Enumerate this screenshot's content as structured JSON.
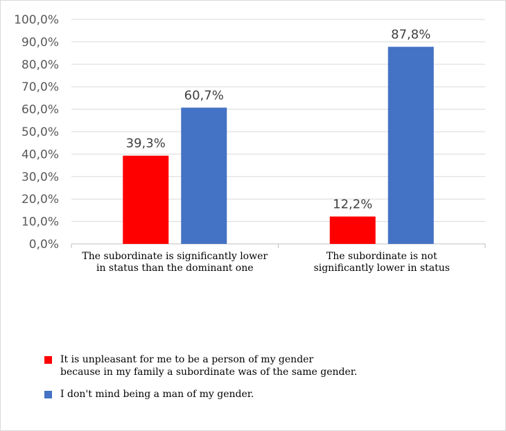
{
  "chart_data": {
    "type": "bar",
    "categories": [
      [
        "The subordinate is significantly lower",
        "in status than the dominant one"
      ],
      [
        "The subordinate is not",
        "significantly lower in status"
      ]
    ],
    "series": [
      {
        "name": [
          "It is unpleasant for me to be a person of my gender",
          "because in my family a subordinate was of the same gender."
        ],
        "values": [
          39.3,
          12.2
        ],
        "labels": [
          "39,3%",
          "12,2%"
        ],
        "color": "#ff0000"
      },
      {
        "name": [
          "I don't mind being a man of my gender."
        ],
        "values": [
          60.7,
          87.8
        ],
        "labels": [
          "60,7%",
          "87,8%"
        ],
        "color": "#4472c4"
      }
    ],
    "ylim": [
      0,
      100
    ],
    "yticks": [
      "0,0%",
      "10,0%",
      "20,0%",
      "30,0%",
      "40,0%",
      "50,0%",
      "60,0%",
      "70,0%",
      "80,0%",
      "90,0%",
      "100,0%"
    ],
    "grid": true,
    "legend_position": "bottom-left"
  }
}
